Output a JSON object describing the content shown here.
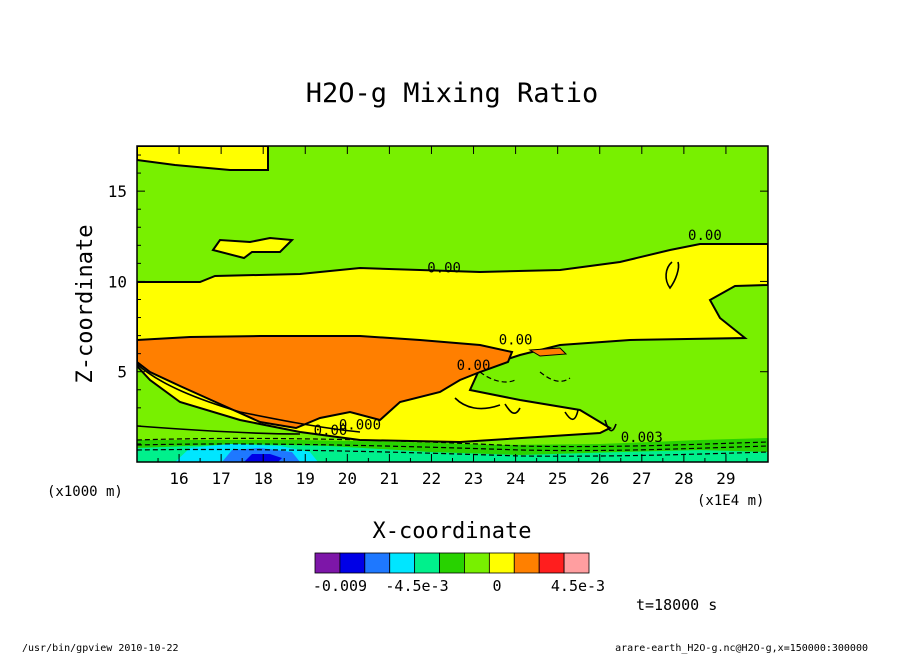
{
  "chart_data": {
    "type": "contour",
    "title": "H2O-g Mixing Ratio",
    "xlabel": "X-coordinate",
    "ylabel": "Z-coordinate",
    "x_units": "(x1000 m)",
    "x_scale": "(x1E4 m)",
    "xlim": [
      15,
      30
    ],
    "ylim": [
      0,
      17.5
    ],
    "x_ticks": [
      "16",
      "17",
      "18",
      "19",
      "20",
      "21",
      "22",
      "23",
      "24",
      "25",
      "26",
      "27",
      "28",
      "29"
    ],
    "y_ticks": [
      "5",
      "10",
      "15"
    ],
    "contour_labels": [
      "0.00",
      "0.00",
      "0.00",
      "0.00",
      "0.003",
      "0.00",
      "0.000"
    ],
    "colorbar": {
      "labels": [
        "-0.009",
        "-4.5e-3",
        "0",
        "4.5e-3"
      ],
      "colors": [
        "#7d16a8",
        "#0000e6",
        "#1e78ff",
        "#00e6ff",
        "#00f08c",
        "#28d200",
        "#78f000",
        "#ffff00",
        "#ff8000",
        "#ff1e1e",
        "#ff9ea0"
      ]
    },
    "time_label": "t=18000 s",
    "field_colors": {
      "yellow": "#ffff00",
      "green": "#78f000",
      "orange": "#ff7f00",
      "mid_green": "#28d200",
      "teal": "#00f08c",
      "cyan": "#00e6ff",
      "blue": "#1e78ff",
      "dark_blue": "#0000e6"
    }
  },
  "footer": {
    "left": "/usr/bin/gpview  2010-10-22",
    "right": "arare-earth_H2O-g.nc@H2O-g,x=150000:300000"
  }
}
